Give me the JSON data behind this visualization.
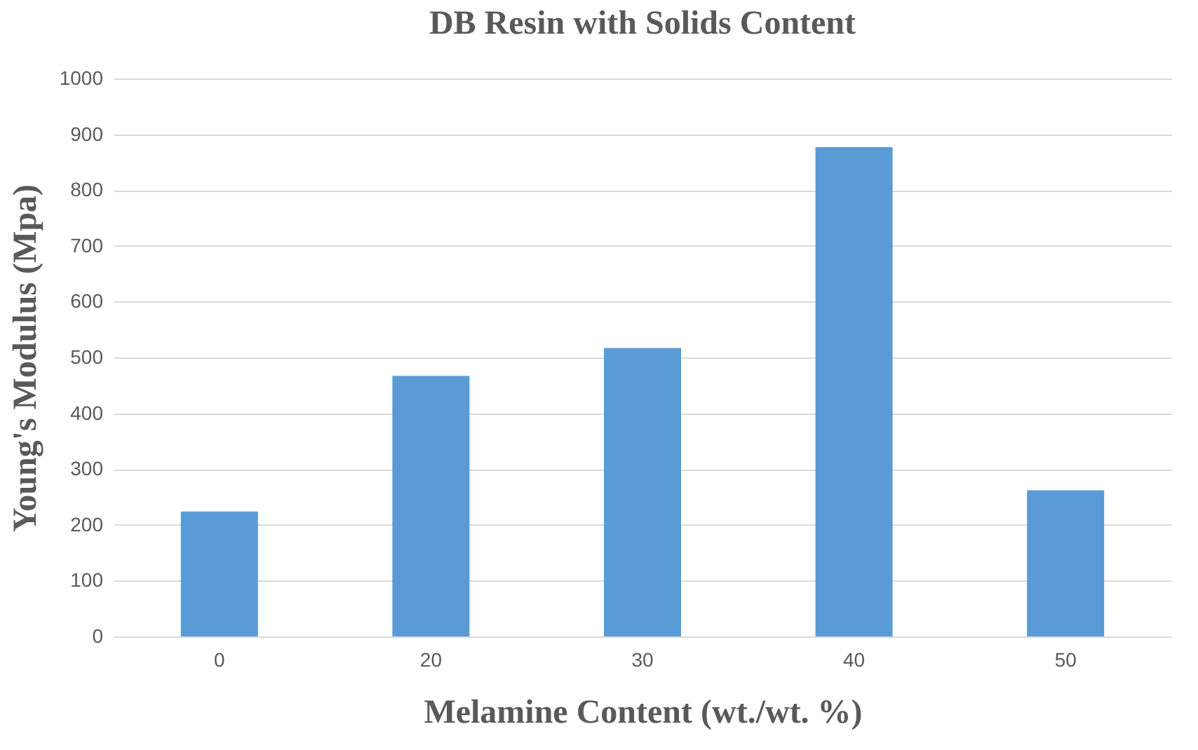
{
  "chart_data": {
    "type": "bar",
    "title": "DB Resin with Solids Content",
    "xlabel": "Melamine  Content (wt./wt. %)",
    "ylabel": "Young's Modulus  (Mpa)",
    "categories": [
      "0",
      "20",
      "30",
      "40",
      "50"
    ],
    "values": [
      224,
      467,
      517,
      877,
      262
    ],
    "color": "#5b9bd5",
    "ylim": [
      0,
      1000
    ],
    "yticks": [
      0,
      100,
      200,
      300,
      400,
      500,
      600,
      700,
      800,
      900,
      1000
    ],
    "grid": "y"
  }
}
